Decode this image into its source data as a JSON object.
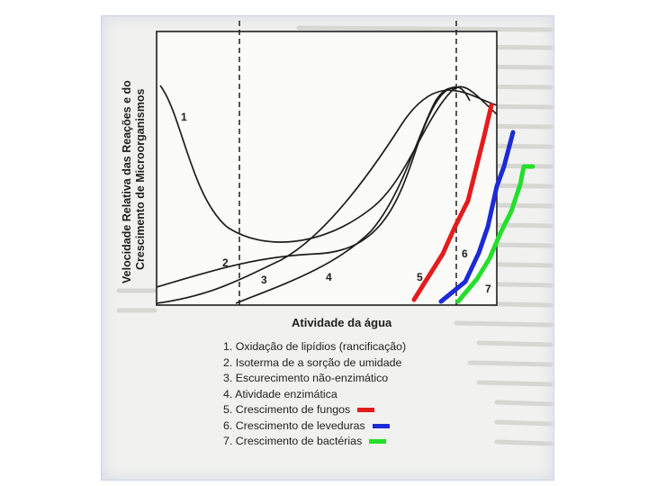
{
  "diagram": {
    "y_axis_label_line1": "Velocidade Relativa das Reações e do",
    "y_axis_label_line2": "Crescimento de Microorganismos",
    "x_axis_label": "Atividade da água",
    "curve_numbers": [
      "1",
      "2",
      "3",
      "4",
      "5",
      "6",
      "7"
    ],
    "legend": [
      {
        "text": "1. Oxidação de lipídios (rancificação)"
      },
      {
        "text": "2. Isoterma de a sorção de umidade"
      },
      {
        "text": "3. Escurecimento não-enzimático"
      },
      {
        "text": "4. Atividade enzimática"
      },
      {
        "text": "5. Crescimento de fungos",
        "color": "#e41c1c"
      },
      {
        "text": "6. Crescimento de leveduras",
        "color": "#1c2bd6"
      },
      {
        "text": "7. Crescimento de bactérias",
        "color": "#22e02a"
      }
    ]
  },
  "colors": {
    "fungi": "#e41c1c",
    "yeast": "#1c2bd6",
    "bacteria": "#22e02a",
    "ink": "#1e1e1e"
  }
}
